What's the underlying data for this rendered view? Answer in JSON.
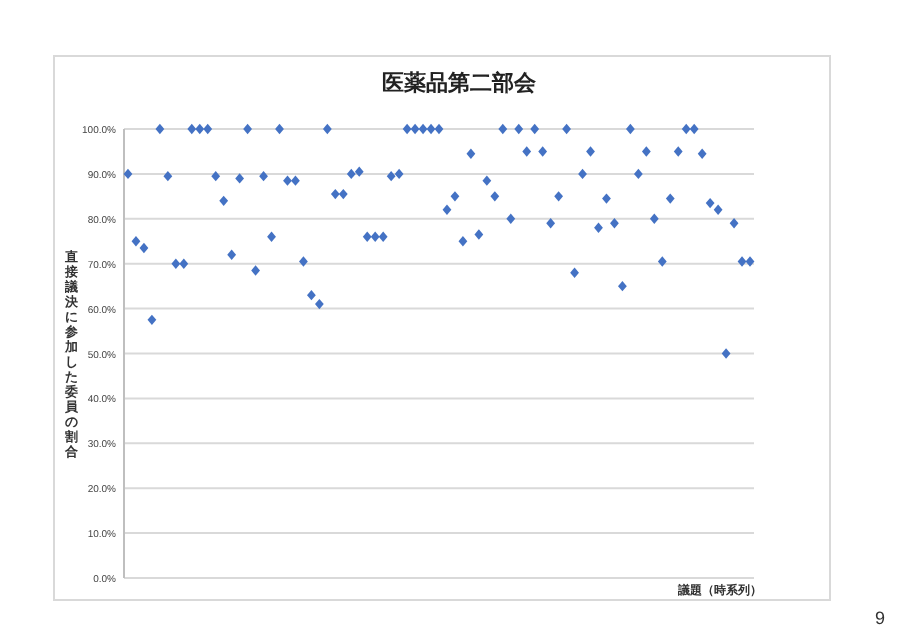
{
  "chart_data": {
    "type": "scatter",
    "title": "医薬品第二部会",
    "ylabel": "直接議決に参加した委員の割合",
    "xlabel": "議題（時系列）",
    "annotations": [
      "9"
    ],
    "categories": [
      null,
      null,
      null,
      null,
      null,
      null,
      null,
      null,
      null,
      null,
      null,
      null,
      null,
      null,
      null,
      null,
      null,
      null,
      null,
      null,
      null,
      null,
      null,
      null,
      null,
      null,
      null,
      null,
      null,
      null,
      null,
      null,
      null,
      null,
      null,
      null,
      null,
      null,
      null,
      null,
      null,
      null,
      null,
      null,
      null,
      null,
      null,
      null,
      null,
      null,
      null,
      null,
      null,
      null,
      null,
      null,
      null,
      null,
      null,
      null,
      null,
      null,
      null,
      null,
      null,
      null,
      null,
      null,
      null,
      null,
      null,
      null,
      null,
      null,
      null,
      null,
      null,
      null,
      null
    ],
    "series": [
      {
        "color": "#4472c4",
        "values": [
          90,
          75,
          73.5,
          57.5,
          100,
          89.5,
          70,
          70,
          100,
          100,
          100,
          89.5,
          84,
          72,
          89,
          100,
          68.5,
          89.5,
          76,
          100,
          88.5,
          88.5,
          70.5,
          63,
          61,
          100,
          85.5,
          85.5,
          90,
          90.5,
          76,
          76,
          76,
          89.5,
          90,
          100,
          100,
          100,
          100,
          100,
          82,
          85,
          75,
          94.5,
          76.5,
          88.5,
          85,
          100,
          80,
          100,
          95,
          100,
          95,
          79,
          85,
          100,
          68,
          90,
          95,
          78,
          84.5,
          79,
          65,
          100,
          90,
          95,
          80,
          70.5,
          84.5,
          95,
          100,
          100,
          94.5,
          83.5,
          82,
          50,
          79,
          70.5,
          70.5
        ]
      }
    ],
    "ylim": [
      0,
      100
    ],
    "yticks": [
      {
        "value": 0,
        "label": "0.0%"
      },
      {
        "value": 10,
        "label": "10.0%"
      },
      {
        "value": 20,
        "label": "20.0%"
      },
      {
        "value": 30,
        "label": "30.0%"
      },
      {
        "value": 40,
        "label": "40.0%"
      },
      {
        "value": 50,
        "label": "50.0%"
      },
      {
        "value": 60,
        "label": "60.0%"
      },
      {
        "value": 70,
        "label": "70.0%"
      },
      {
        "value": 80,
        "label": "80.0%"
      },
      {
        "value": 90,
        "label": "90.0%"
      },
      {
        "value": 100,
        "label": "100.0%"
      }
    ],
    "grid": "y",
    "marker": "diamond"
  }
}
